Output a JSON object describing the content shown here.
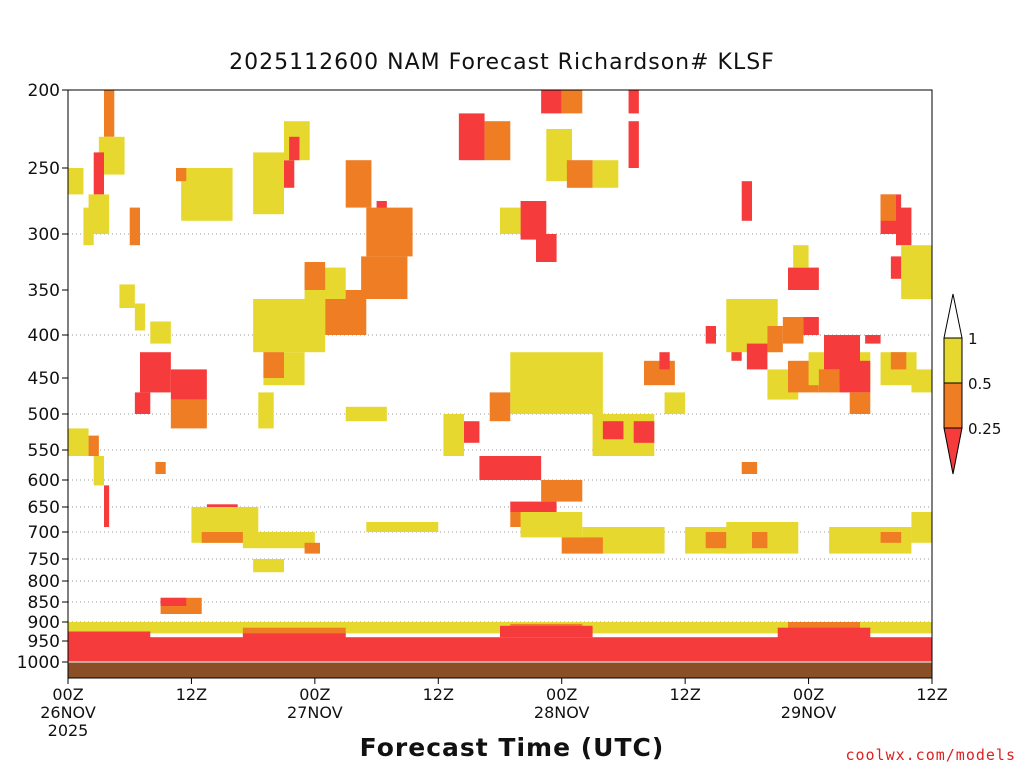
{
  "chart_data": {
    "type": "heatmap",
    "title": "2025112600 NAM Forecast Richardson# KLSF",
    "xlabel": "Forecast Time (UTC)",
    "ylabel": "",
    "y_axis": {
      "range": [
        1000,
        200
      ],
      "ticks": [
        200,
        250,
        300,
        350,
        400,
        450,
        500,
        550,
        600,
        650,
        700,
        750,
        800,
        850,
        900,
        950,
        1000
      ],
      "gridlines": [
        300,
        400,
        500,
        550,
        600,
        650,
        700,
        750,
        800,
        850,
        900,
        950
      ]
    },
    "x_axis": {
      "range_hours": [
        0,
        84
      ],
      "ticks": [
        {
          "hour": 0,
          "lines": [
            "00Z",
            "26NOV",
            "2025"
          ]
        },
        {
          "hour": 12,
          "lines": [
            "12Z"
          ]
        },
        {
          "hour": 24,
          "lines": [
            "00Z",
            "27NOV"
          ]
        },
        {
          "hour": 36,
          "lines": [
            "12Z"
          ]
        },
        {
          "hour": 48,
          "lines": [
            "00Z",
            "28NOV"
          ]
        },
        {
          "hour": 60,
          "lines": [
            "12Z"
          ]
        },
        {
          "hour": 72,
          "lines": [
            "00Z",
            "29NOV"
          ]
        },
        {
          "hour": 84,
          "lines": [
            "12Z"
          ]
        }
      ]
    },
    "legend": {
      "position": "right",
      "levels": [
        {
          "label": "1",
          "color": "#ffffff"
        },
        {
          "label": "0.5",
          "color": "#e6d82e"
        },
        {
          "label": "0.25",
          "color": "#ee7d24"
        },
        {
          "label": "",
          "color": "#f53b3b"
        }
      ]
    },
    "categories": {
      "Y": {
        "range": "0.5 - 1",
        "color": "#e6d82e"
      },
      "O": {
        "range": "0.25 - 0.5",
        "color": "#ee7d24"
      },
      "R": {
        "range": "< 0.25",
        "color": "#f53b3b"
      }
    },
    "ground_color": "#8b4f28",
    "regions": [
      {
        "c": "Y",
        "h": [
          0,
          1.5
        ],
        "p": [
          250,
          270
        ]
      },
      {
        "c": "O",
        "h": [
          3.5,
          4.5
        ],
        "p": [
          200,
          230
        ]
      },
      {
        "c": "Y",
        "h": [
          3,
          5.5
        ],
        "p": [
          230,
          255
        ]
      },
      {
        "c": "R",
        "h": [
          2.5,
          3.5
        ],
        "p": [
          240,
          270
        ]
      },
      {
        "c": "Y",
        "h": [
          2,
          4
        ],
        "p": [
          270,
          300
        ]
      },
      {
        "c": "Y",
        "h": [
          1.5,
          2.5
        ],
        "p": [
          280,
          310
        ]
      },
      {
        "c": "O",
        "h": [
          6,
          7
        ],
        "p": [
          280,
          310
        ]
      },
      {
        "c": "Y",
        "h": [
          5,
          6.5
        ],
        "p": [
          345,
          370
        ]
      },
      {
        "c": "Y",
        "h": [
          6.5,
          7.5
        ],
        "p": [
          365,
          395
        ]
      },
      {
        "c": "Y",
        "h": [
          8,
          10
        ],
        "p": [
          385,
          410
        ]
      },
      {
        "c": "R",
        "h": [
          7,
          10
        ],
        "p": [
          420,
          470
        ]
      },
      {
        "c": "R",
        "h": [
          10,
          13.5
        ],
        "p": [
          440,
          480
        ]
      },
      {
        "c": "O",
        "h": [
          10,
          13.5
        ],
        "p": [
          480,
          520
        ]
      },
      {
        "c": "R",
        "h": [
          6.5,
          8
        ],
        "p": [
          470,
          500
        ]
      },
      {
        "c": "Y",
        "h": [
          0,
          2
        ],
        "p": [
          520,
          560
        ]
      },
      {
        "c": "O",
        "h": [
          2,
          3
        ],
        "p": [
          530,
          560
        ]
      },
      {
        "c": "Y",
        "h": [
          2.5,
          3.5
        ],
        "p": [
          560,
          610
        ]
      },
      {
        "c": "R",
        "h": [
          3.5,
          4
        ],
        "p": [
          610,
          690
        ]
      },
      {
        "c": "O",
        "h": [
          8.5,
          9.5
        ],
        "p": [
          570,
          590
        ]
      },
      {
        "c": "Y",
        "h": [
          11,
          16
        ],
        "p": [
          250,
          290
        ]
      },
      {
        "c": "O",
        "h": [
          10.5,
          11.5
        ],
        "p": [
          250,
          260
        ]
      },
      {
        "c": "R",
        "h": [
          20.5,
          22
        ],
        "p": [
          245,
          265
        ]
      },
      {
        "c": "Y",
        "h": [
          18,
          21
        ],
        "p": [
          240,
          285
        ]
      },
      {
        "c": "Y",
        "h": [
          21,
          23.5
        ],
        "p": [
          220,
          245
        ]
      },
      {
        "c": "R",
        "h": [
          21.5,
          22.5
        ],
        "p": [
          230,
          245
        ]
      },
      {
        "c": "O",
        "h": [
          27,
          29.5
        ],
        "p": [
          245,
          280
        ]
      },
      {
        "c": "R",
        "h": [
          30,
          31
        ],
        "p": [
          275,
          300
        ]
      },
      {
        "c": "O",
        "h": [
          29,
          33.5
        ],
        "p": [
          280,
          320
        ]
      },
      {
        "c": "O",
        "h": [
          28.5,
          33
        ],
        "p": [
          320,
          360
        ]
      },
      {
        "c": "O",
        "h": [
          25,
          29
        ],
        "p": [
          350,
          400
        ]
      },
      {
        "c": "Y",
        "h": [
          18,
          25
        ],
        "p": [
          360,
          420
        ]
      },
      {
        "c": "Y",
        "h": [
          19,
          23
        ],
        "p": [
          420,
          460
        ]
      },
      {
        "c": "O",
        "h": [
          19,
          21
        ],
        "p": [
          420,
          450
        ]
      },
      {
        "c": "Y",
        "h": [
          23,
          27
        ],
        "p": [
          330,
          360
        ]
      },
      {
        "c": "O",
        "h": [
          23,
          25
        ],
        "p": [
          325,
          350
        ]
      },
      {
        "c": "Y",
        "h": [
          27,
          31
        ],
        "p": [
          490,
          510
        ]
      },
      {
        "c": "Y",
        "h": [
          18.5,
          20
        ],
        "p": [
          470,
          520
        ]
      },
      {
        "c": "R",
        "h": [
          38,
          40.5
        ],
        "p": [
          215,
          245
        ]
      },
      {
        "c": "O",
        "h": [
          40.5,
          43
        ],
        "p": [
          220,
          245
        ]
      },
      {
        "c": "R",
        "h": [
          44,
          46.5
        ],
        "p": [
          275,
          305
        ]
      },
      {
        "c": "Y",
        "h": [
          42,
          44
        ],
        "p": [
          280,
          300
        ]
      },
      {
        "c": "R",
        "h": [
          46,
          48
        ],
        "p": [
          200,
          215
        ]
      },
      {
        "c": "O",
        "h": [
          48,
          50
        ],
        "p": [
          200,
          215
        ]
      },
      {
        "c": "Y",
        "h": [
          46.5,
          49
        ],
        "p": [
          225,
          260
        ]
      },
      {
        "c": "O",
        "h": [
          48.5,
          51
        ],
        "p": [
          245,
          265
        ]
      },
      {
        "c": "Y",
        "h": [
          51,
          53.5
        ],
        "p": [
          245,
          265
        ]
      },
      {
        "c": "R",
        "h": [
          45.5,
          47.5
        ],
        "p": [
          300,
          325
        ]
      },
      {
        "c": "R",
        "h": [
          54.5,
          55.5
        ],
        "p": [
          200,
          215
        ]
      },
      {
        "c": "R",
        "h": [
          54.5,
          55.5
        ],
        "p": [
          220,
          250
        ]
      },
      {
        "c": "Y",
        "h": [
          43,
          52
        ],
        "p": [
          420,
          500
        ]
      },
      {
        "c": "O",
        "h": [
          41,
          43
        ],
        "p": [
          470,
          510
        ]
      },
      {
        "c": "Y",
        "h": [
          36.5,
          38.5
        ],
        "p": [
          500,
          560
        ]
      },
      {
        "c": "R",
        "h": [
          38.5,
          40
        ],
        "p": [
          510,
          540
        ]
      },
      {
        "c": "R",
        "h": [
          40,
          46
        ],
        "p": [
          560,
          600
        ]
      },
      {
        "c": "O",
        "h": [
          46,
          50
        ],
        "p": [
          600,
          640
        ]
      },
      {
        "c": "R",
        "h": [
          43,
          47.5
        ],
        "p": [
          640,
          660
        ]
      },
      {
        "c": "O",
        "h": [
          43,
          45
        ],
        "p": [
          660,
          690
        ]
      },
      {
        "c": "Y",
        "h": [
          44,
          50
        ],
        "p": [
          660,
          710
        ]
      },
      {
        "c": "Y",
        "h": [
          50,
          58
        ],
        "p": [
          690,
          740
        ]
      },
      {
        "c": "O",
        "h": [
          48,
          52
        ],
        "p": [
          710,
          740
        ]
      },
      {
        "c": "Y",
        "h": [
          51,
          57
        ],
        "p": [
          500,
          560
        ]
      },
      {
        "c": "R",
        "h": [
          52,
          54
        ],
        "p": [
          510,
          535
        ]
      },
      {
        "c": "R",
        "h": [
          55,
          57
        ],
        "p": [
          510,
          540
        ]
      },
      {
        "c": "O",
        "h": [
          56,
          59
        ],
        "p": [
          430,
          460
        ]
      },
      {
        "c": "Y",
        "h": [
          58,
          60
        ],
        "p": [
          470,
          500
        ]
      },
      {
        "c": "R",
        "h": [
          57.5,
          58.5
        ],
        "p": [
          420,
          440
        ]
      },
      {
        "c": "Y",
        "h": [
          60,
          66
        ],
        "p": [
          690,
          740
        ]
      },
      {
        "c": "O",
        "h": [
          62,
          64
        ],
        "p": [
          700,
          730
        ]
      },
      {
        "c": "R",
        "h": [
          62,
          63
        ],
        "p": [
          390,
          410
        ]
      },
      {
        "c": "R",
        "h": [
          64.5,
          65.5
        ],
        "p": [
          400,
          430
        ]
      },
      {
        "c": "R",
        "h": [
          65.5,
          66.5
        ],
        "p": [
          260,
          290
        ]
      },
      {
        "c": "O",
        "h": [
          65.5,
          67
        ],
        "p": [
          570,
          590
        ]
      },
      {
        "c": "Y",
        "h": [
          64,
          69
        ],
        "p": [
          360,
          420
        ]
      },
      {
        "c": "R",
        "h": [
          66,
          68
        ],
        "p": [
          410,
          440
        ]
      },
      {
        "c": "Y",
        "h": [
          64,
          71
        ],
        "p": [
          680,
          740
        ]
      },
      {
        "c": "O",
        "h": [
          66.5,
          68
        ],
        "p": [
          700,
          730
        ]
      },
      {
        "c": "Y",
        "h": [
          68,
          71
        ],
        "p": [
          440,
          480
        ]
      },
      {
        "c": "O",
        "h": [
          68,
          69.5
        ],
        "p": [
          390,
          420
        ]
      },
      {
        "c": "O",
        "h": [
          69.5,
          71.5
        ],
        "p": [
          380,
          410
        ]
      },
      {
        "c": "R",
        "h": [
          71.5,
          73
        ],
        "p": [
          380,
          400
        ]
      },
      {
        "c": "O",
        "h": [
          70,
          73
        ],
        "p": [
          430,
          470
        ]
      },
      {
        "c": "R",
        "h": [
          70,
          73
        ],
        "p": [
          330,
          350
        ]
      },
      {
        "c": "Y",
        "h": [
          70.5,
          72
        ],
        "p": [
          310,
          330
        ]
      },
      {
        "c": "Y",
        "h": [
          72,
          78
        ],
        "p": [
          420,
          460
        ]
      },
      {
        "c": "R",
        "h": [
          73.5,
          77
        ],
        "p": [
          400,
          440
        ]
      },
      {
        "c": "R",
        "h": [
          75,
          78
        ],
        "p": [
          430,
          470
        ]
      },
      {
        "c": "O",
        "h": [
          73,
          75
        ],
        "p": [
          440,
          470
        ]
      },
      {
        "c": "O",
        "h": [
          76,
          78
        ],
        "p": [
          470,
          500
        ]
      },
      {
        "c": "R",
        "h": [
          77.5,
          79
        ],
        "p": [
          400,
          410
        ]
      },
      {
        "c": "Y",
        "h": [
          74,
          82
        ],
        "p": [
          690,
          740
        ]
      },
      {
        "c": "O",
        "h": [
          79,
          81
        ],
        "p": [
          700,
          720
        ]
      },
      {
        "c": "Y",
        "h": [
          82,
          84
        ],
        "p": [
          660,
          720
        ]
      },
      {
        "c": "R",
        "h": [
          79,
          81
        ],
        "p": [
          270,
          300
        ]
      },
      {
        "c": "R",
        "h": [
          80.5,
          82
        ],
        "p": [
          280,
          310
        ]
      },
      {
        "c": "O",
        "h": [
          79,
          80.5
        ],
        "p": [
          270,
          290
        ]
      },
      {
        "c": "Y",
        "h": [
          81,
          84
        ],
        "p": [
          310,
          360
        ]
      },
      {
        "c": "R",
        "h": [
          80,
          81
        ],
        "p": [
          320,
          340
        ]
      },
      {
        "c": "Y",
        "h": [
          79,
          82.5
        ],
        "p": [
          420,
          460
        ]
      },
      {
        "c": "O",
        "h": [
          80,
          81.5
        ],
        "p": [
          420,
          440
        ]
      },
      {
        "c": "Y",
        "h": [
          82,
          84
        ],
        "p": [
          440,
          470
        ]
      },
      {
        "c": "R",
        "h": [
          13.5,
          16.5
        ],
        "p": [
          645,
          665
        ]
      },
      {
        "c": "O",
        "h": [
          12.5,
          17.5
        ],
        "p": [
          665,
          690
        ]
      },
      {
        "c": "Y",
        "h": [
          12,
          18.5
        ],
        "p": [
          650,
          720
        ]
      },
      {
        "c": "O",
        "h": [
          13,
          17.5
        ],
        "p": [
          700,
          720
        ]
      },
      {
        "c": "Y",
        "h": [
          17,
          24
        ],
        "p": [
          700,
          730
        ]
      },
      {
        "c": "O",
        "h": [
          23,
          24.5
        ],
        "p": [
          720,
          740
        ]
      },
      {
        "c": "Y",
        "h": [
          18,
          21
        ],
        "p": [
          750,
          780
        ]
      },
      {
        "c": "O",
        "h": [
          9,
          13
        ],
        "p": [
          840,
          880
        ]
      },
      {
        "c": "R",
        "h": [
          9,
          11.5
        ],
        "p": [
          840,
          860
        ]
      },
      {
        "c": "Y",
        "h": [
          29,
          36
        ],
        "p": [
          680,
          700
        ]
      },
      {
        "c": "Y",
        "h": [
          0,
          84
        ],
        "p": [
          900,
          930
        ]
      },
      {
        "c": "O",
        "h": [
          17,
          27
        ],
        "p": [
          915,
          935
        ]
      },
      {
        "c": "O",
        "h": [
          43,
          50
        ],
        "p": [
          905,
          925
        ]
      },
      {
        "c": "O",
        "h": [
          70,
          77
        ],
        "p": [
          900,
          920
        ]
      },
      {
        "c": "R",
        "h": [
          0,
          84
        ],
        "p": [
          940,
          1000
        ]
      },
      {
        "c": "R",
        "h": [
          0,
          8
        ],
        "p": [
          925,
          950
        ]
      },
      {
        "c": "R",
        "h": [
          17,
          27
        ],
        "p": [
          930,
          950
        ]
      },
      {
        "c": "R",
        "h": [
          42,
          51
        ],
        "p": [
          910,
          940
        ]
      },
      {
        "c": "R",
        "h": [
          69,
          78
        ],
        "p": [
          915,
          945
        ]
      }
    ]
  },
  "watermark": "coolwx.com/models"
}
